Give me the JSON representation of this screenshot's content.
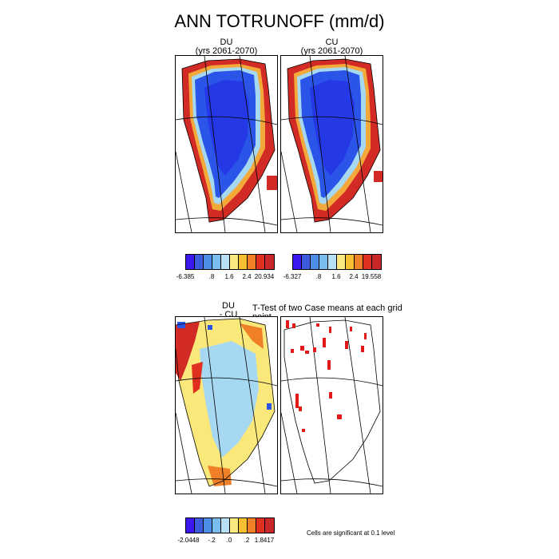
{
  "title": "ANN TOTRUNOFF (mm/d)",
  "panels": {
    "du": {
      "name": "DU",
      "years": "(yrs 2061-2070)"
    },
    "cu": {
      "name": "CU",
      "years": "(yrs 2061-2070)"
    },
    "diff": {
      "line1": "DU",
      "line2": "- CU"
    },
    "ttest": {
      "title": "T-Test of two Case means at each grid point"
    }
  },
  "colorbars": {
    "du": {
      "colors": [
        "#3b18f0",
        "#3c5bdc",
        "#4a8ee6",
        "#79bdf0",
        "#b8e0f5",
        "#fbe880",
        "#f8c030",
        "#f08028",
        "#e03020",
        "#c82828"
      ],
      "labels": [
        "-6.385",
        ".8",
        "1.6",
        "2.4",
        "20.934"
      ]
    },
    "cu": {
      "colors": [
        "#3b18f0",
        "#3c5bdc",
        "#4a8ee6",
        "#79bdf0",
        "#b8e0f5",
        "#fbe880",
        "#f8c030",
        "#f08028",
        "#e03020",
        "#c82828"
      ],
      "labels": [
        "-6.327",
        ".8",
        "1.6",
        "2.4",
        "19.558"
      ]
    },
    "diff": {
      "colors": [
        "#3b18f0",
        "#3c5bdc",
        "#4a8ee6",
        "#79bdf0",
        "#b8e0f5",
        "#fbe880",
        "#f8c030",
        "#f08028",
        "#e03020",
        "#c82828"
      ],
      "labels": [
        "-2.0448",
        "-.2",
        ".0",
        ".2",
        "1.8417"
      ]
    }
  },
  "significance_note": "Cells are significant at 0.1 level"
}
